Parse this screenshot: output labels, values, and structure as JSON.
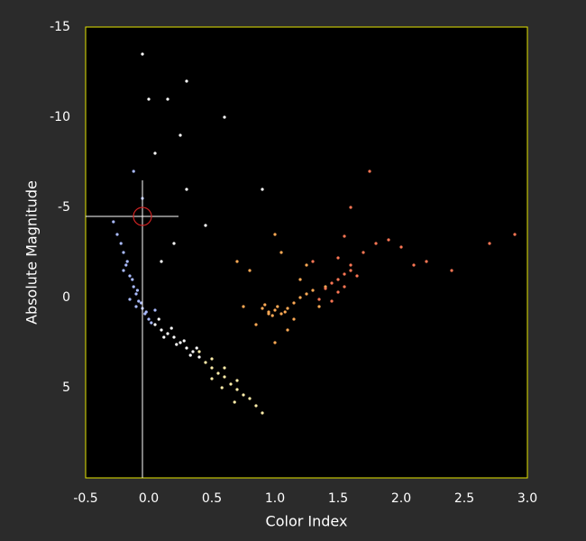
{
  "chart_data": {
    "type": "scatter",
    "x_label": "Color Index",
    "y_label": "Absolute Magnitude",
    "xlim": [
      -0.5,
      3.0
    ],
    "xticks": [
      -0.5,
      {
        "value": 0,
        "label": "0.0"
      },
      0.5,
      {
        "value": 1,
        "label": "1.0"
      },
      1.5,
      {
        "value": 2,
        "label": "2.0"
      },
      2.5,
      {
        "value": 3,
        "label": "3.0"
      }
    ],
    "ylim": [
      -15,
      10
    ],
    "y_inverted": true,
    "yticks": [
      -15,
      -10,
      -5,
      0,
      5
    ],
    "grid": false,
    "cursor": {
      "x": -0.05,
      "y": -4.5
    },
    "series": [
      {
        "color": "#aabbff",
        "x": [
          -0.25,
          -0.2,
          -0.18,
          -0.15,
          -0.12,
          -0.1,
          -0.08,
          -0.05,
          -0.03,
          0.0,
          -0.22,
          -0.17,
          -0.13,
          -0.09,
          -0.06,
          -0.02,
          0.02,
          -0.2,
          -0.15,
          -0.1,
          -0.28,
          -0.05,
          0.05,
          -0.12
        ],
        "values": [
          -3.5,
          -2.5,
          -1.8,
          -1.2,
          -0.6,
          -0.2,
          0.2,
          0.6,
          0.9,
          1.2,
          -3,
          -2,
          -1,
          -0.4,
          0.3,
          0.8,
          1.4,
          -1.5,
          0.1,
          0.5,
          -4.2,
          -5.5,
          0.7,
          -7
        ]
      },
      {
        "color": "#ffffff",
        "x": [
          0.05,
          0.1,
          0.15,
          0.2,
          0.25,
          0.3,
          0.35,
          0.4,
          0.08,
          0.12,
          0.18,
          0.22,
          0.28,
          0.33,
          0.38,
          0.1,
          0.2,
          0.3,
          0.45,
          0.05,
          0.15,
          0.25,
          -0.05,
          0.0,
          0.3,
          0.6,
          0.9
        ],
        "values": [
          1.5,
          1.8,
          2.0,
          2.2,
          2.5,
          2.8,
          3.0,
          3.3,
          1.2,
          2.2,
          1.7,
          2.6,
          2.4,
          3.2,
          2.8,
          -2,
          -3,
          -6,
          -4,
          -8,
          -11,
          -9,
          -13.5,
          -11,
          -12,
          -10,
          -6
        ]
      },
      {
        "color": "#ffeeaa",
        "x": [
          0.45,
          0.5,
          0.55,
          0.6,
          0.65,
          0.7,
          0.75,
          0.8,
          0.5,
          0.6,
          0.7,
          0.58,
          0.68,
          0.85,
          0.9,
          0.4,
          0.5
        ],
        "values": [
          3.6,
          3.9,
          4.2,
          4.4,
          4.8,
          5.1,
          5.4,
          5.6,
          4.5,
          3.9,
          4.6,
          5.0,
          5.8,
          6.0,
          6.4,
          3.0,
          3.4
        ]
      },
      {
        "color": "#ffaa55",
        "x": [
          0.9,
          0.95,
          1.0,
          1.05,
          1.1,
          0.92,
          0.98,
          1.02,
          1.08,
          1.15,
          1.2,
          1.25,
          1.3,
          0.85,
          1.0,
          1.1,
          0.8,
          1.05,
          1.35,
          1.4,
          0.95,
          1.2,
          1.0,
          1.15,
          0.7,
          0.75,
          1.25
        ],
        "values": [
          0.6,
          0.8,
          0.7,
          0.9,
          0.6,
          0.4,
          1.0,
          0.5,
          0.8,
          0.3,
          0.0,
          -0.2,
          -0.4,
          1.5,
          2.5,
          1.8,
          -1.5,
          -2.5,
          0.5,
          -0.6,
          0.9,
          -1.0,
          -3.5,
          1.2,
          -2,
          0.5,
          -1.8
        ]
      },
      {
        "color": "#ff7755",
        "x": [
          1.4,
          1.45,
          1.5,
          1.55,
          1.6,
          1.5,
          1.55,
          1.6,
          1.65,
          1.45,
          1.35,
          1.5,
          1.7,
          1.8,
          2.0,
          2.2,
          2.4,
          2.7,
          2.9,
          1.3,
          1.6,
          1.9,
          2.1,
          1.75,
          1.55
        ],
        "values": [
          -0.5,
          -0.8,
          -1.0,
          -1.3,
          -1.5,
          -0.3,
          -0.6,
          -1.8,
          -1.2,
          0.2,
          0.1,
          -2.2,
          -2.5,
          -3,
          -2.8,
          -2,
          -1.5,
          -3,
          -3.5,
          -2,
          -5,
          -3.2,
          -1.8,
          -7,
          -3.4
        ]
      }
    ]
  }
}
